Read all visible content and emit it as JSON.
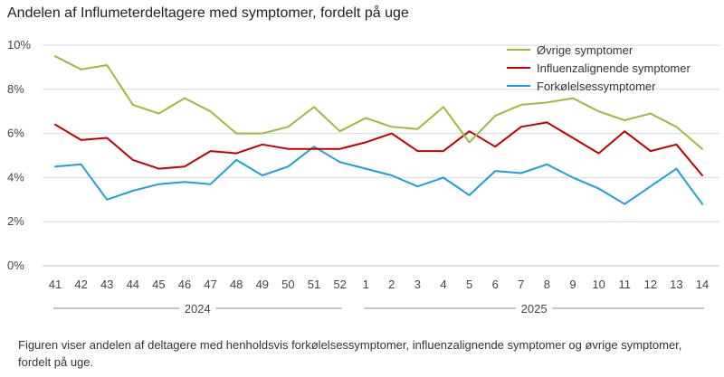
{
  "title": "Andelen af Influmeterdeltagere med symptomer, fordelt på uge",
  "caption": "Figuren viser andelen af deltagere med henholdsvis forkølelsessymptomer, influenzalignende symptomer og øvrige symptomer, fordelt på uge.",
  "chart_data": {
    "type": "line",
    "title": "Andelen af Influmeterdeltagere med symptomer, fordelt på uge",
    "xlabel": "",
    "ylabel": "",
    "categories": [
      "41",
      "42",
      "43",
      "44",
      "45",
      "46",
      "47",
      "48",
      "49",
      "50",
      "51",
      "52",
      "1",
      "2",
      "3",
      "4",
      "5",
      "6",
      "7",
      "8",
      "9",
      "10",
      "11",
      "12",
      "13",
      "14"
    ],
    "year_groups": [
      {
        "label": "2024",
        "from": "41",
        "to": "52"
      },
      {
        "label": "2025",
        "from": "1",
        "to": "14"
      }
    ],
    "ylim": [
      0,
      10
    ],
    "yticks": [
      0,
      2,
      4,
      6,
      8,
      10
    ],
    "ytick_labels": [
      "0%",
      "2%",
      "4%",
      "6%",
      "8%",
      "10%"
    ],
    "legend_position": "top-right",
    "series": [
      {
        "name": "Øvrige symptomer",
        "color": "#9bbb3c",
        "values": [
          9.5,
          8.9,
          9.1,
          7.3,
          6.9,
          7.6,
          7.0,
          6.0,
          6.0,
          6.3,
          7.2,
          6.1,
          6.7,
          6.3,
          6.2,
          7.2,
          5.6,
          6.8,
          7.3,
          7.4,
          7.6,
          7.0,
          6.6,
          6.9,
          6.3,
          5.3
        ]
      },
      {
        "name": "Influenzalignende symptomer",
        "color": "#c00000",
        "values": [
          6.4,
          5.7,
          5.8,
          4.8,
          4.4,
          4.5,
          5.2,
          5.1,
          5.5,
          5.3,
          5.3,
          5.3,
          5.6,
          6.0,
          5.2,
          5.2,
          6.1,
          5.4,
          6.3,
          6.5,
          5.8,
          5.1,
          6.1,
          5.2,
          5.5,
          4.1
        ]
      },
      {
        "name": "Forkølelsessymptomer",
        "color": "#1ba1d6",
        "values": [
          4.5,
          4.6,
          3.0,
          3.4,
          3.7,
          3.8,
          3.7,
          4.8,
          4.1,
          4.5,
          5.4,
          4.7,
          4.4,
          4.1,
          3.6,
          4.0,
          3.2,
          4.3,
          4.2,
          4.6,
          4.0,
          3.5,
          2.8,
          3.6,
          4.4,
          2.8
        ]
      }
    ]
  }
}
